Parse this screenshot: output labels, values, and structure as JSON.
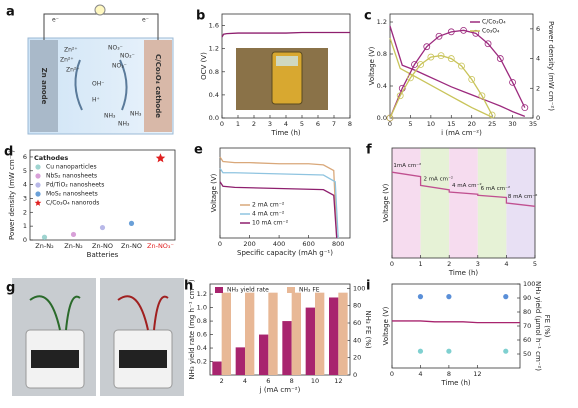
{
  "diagram": {
    "panel": "a",
    "labels": [
      "e⁻",
      "e⁻",
      "Zn anode",
      "C/Co₃O₄ cathode",
      "Zn²⁺",
      "Zn²⁺",
      "Zn²⁺",
      "NO₃⁻",
      "NO₂⁻",
      "NO₃⁻",
      "OH⁻",
      "H⁺",
      "NH₃",
      "NH₃",
      "NH₃"
    ]
  },
  "photo": {
    "panel": "g"
  },
  "chart_data": [
    {
      "panel": "b",
      "type": "line",
      "xlabel": "Time (h)",
      "ylabel": "OCV (V)",
      "xlim": [
        0,
        8
      ],
      "ylim": [
        0,
        1.8
      ],
      "xticks": [
        0,
        1,
        2,
        3,
        4,
        5,
        6,
        7,
        8
      ],
      "yticks": [
        {
          "value": 0,
          "label": "0.0"
        },
        0.4,
        0.8,
        1.2,
        1.6
      ],
      "series": [
        {
          "color": "#8e1f6e",
          "x": [
            0,
            0.1,
            0.3,
            1,
            2,
            3,
            4,
            5,
            6,
            7,
            8
          ],
          "values": [
            1.4,
            1.45,
            1.46,
            1.47,
            1.47,
            1.47,
            1.47,
            1.48,
            1.48,
            1.48,
            1.48
          ]
        }
      ]
    },
    {
      "panel": "c",
      "type": "line",
      "xlabel": "i (mA cm⁻²)",
      "ylabel": "Voltage (V)",
      "y2label": "Power density (mW cm⁻²)",
      "xlim": [
        0,
        35
      ],
      "ylim": [
        0,
        1.3
      ],
      "y2lim": [
        0,
        7
      ],
      "xticks": [
        0,
        5,
        10,
        15,
        20,
        25,
        30,
        35
      ],
      "yticks": [
        {
          "value": 0,
          "label": "0.0"
        },
        0.4,
        0.8,
        1.2
      ],
      "y2ticks": [
        0,
        2,
        4,
        6
      ],
      "series": [
        {
          "name": "C/Co₃O₄",
          "color": "#9c2a7e",
          "x": [
            0,
            3,
            6,
            9,
            12,
            15,
            18,
            21,
            24,
            27,
            30,
            33
          ],
          "values": [
            1.15,
            0.66,
            0.6,
            0.53,
            0.46,
            0.39,
            0.33,
            0.27,
            0.21,
            0.15,
            0.08,
            0.02
          ]
        },
        {
          "name": "Co₃O₄",
          "color": "#c9c45a",
          "x": [
            0,
            2.5,
            5,
            7.5,
            10,
            12.5,
            15,
            17.5,
            20,
            22.5,
            25
          ],
          "values": [
            1.0,
            0.62,
            0.55,
            0.48,
            0.41,
            0.34,
            0.27,
            0.2,
            0.13,
            0.07,
            0.01
          ]
        },
        {
          "color": "#9c2a7e",
          "axis": "y2",
          "marker": "circle",
          "x": [
            0,
            3,
            6,
            9,
            12,
            15,
            18,
            21,
            24,
            27,
            30,
            33
          ],
          "values": [
            0,
            2.0,
            3.6,
            4.8,
            5.5,
            5.8,
            5.9,
            5.7,
            5.0,
            4.0,
            2.4,
            0.7
          ]
        },
        {
          "color": "#c9c45a",
          "axis": "y2",
          "marker": "circle",
          "x": [
            0,
            2.5,
            5,
            7.5,
            10,
            12.5,
            15,
            17.5,
            20,
            22.5,
            25
          ],
          "values": [
            0,
            1.5,
            2.7,
            3.6,
            4.1,
            4.2,
            4.0,
            3.5,
            2.6,
            1.5,
            0.2
          ]
        }
      ]
    },
    {
      "panel": "d",
      "type": "scatter",
      "xlabel": "Batteries",
      "ylabel": "Power density (mW cm⁻²)",
      "legend_title": "Cathodes",
      "categories": [
        "Zn-N₂",
        "Zn-N₂",
        "Zn-NO",
        "Zn-NO",
        "Zn-NO₃⁻"
      ],
      "label_colors": [
        "#222",
        "#222",
        "#222",
        "#222",
        "#e02020"
      ],
      "ylim": [
        0,
        6.5
      ],
      "yticks": [
        0,
        1,
        2,
        3,
        4,
        5,
        6
      ],
      "series": [
        {
          "name": "Cu nanoparticles",
          "color": "#9fd4d0",
          "values": [
            0.2,
            null,
            null,
            null,
            null
          ]
        },
        {
          "name": "NbS₂ nanosheets",
          "color": "#d8a0d8",
          "values": [
            null,
            0.4,
            null,
            null,
            null
          ]
        },
        {
          "name": "Pd/TiO₂ nanosheets",
          "color": "#b8b8e8",
          "values": [
            null,
            null,
            0.9,
            null,
            null
          ]
        },
        {
          "name": "MoS₂ nanosheets",
          "color": "#6aa0d8",
          "values": [
            null,
            null,
            null,
            1.2,
            null
          ]
        },
        {
          "name": "C/Co₃O₄ nanorods",
          "color": "#e02020",
          "marker": "star",
          "values": [
            null,
            null,
            null,
            null,
            5.9
          ]
        }
      ]
    },
    {
      "panel": "e",
      "type": "line",
      "xlabel": "Specific capacity (mAh g⁻¹)",
      "ylabel": "Voltage (V)",
      "xlim": [
        0,
        880
      ],
      "ylim": [
        0,
        0.8
      ],
      "xticks": [
        0,
        200,
        400,
        600,
        800
      ],
      "series": [
        {
          "name": "2 mA cm⁻²",
          "color": "#d9a87a",
          "x": [
            0,
            20,
            100,
            200,
            400,
            600,
            700,
            770,
            790
          ],
          "values": [
            0.72,
            0.68,
            0.67,
            0.67,
            0.66,
            0.66,
            0.65,
            0.6,
            0
          ]
        },
        {
          "name": "4 mA cm⁻²",
          "color": "#8fc4e0",
          "x": [
            0,
            20,
            100,
            400,
            700,
            780,
            800
          ],
          "values": [
            0.62,
            0.58,
            0.58,
            0.57,
            0.56,
            0.5,
            0
          ]
        },
        {
          "name": "10 mA cm⁻²",
          "color": "#8e1f6e",
          "x": [
            0,
            20,
            100,
            400,
            700,
            770,
            790
          ],
          "values": [
            0.5,
            0.46,
            0.45,
            0.44,
            0.43,
            0.38,
            0
          ]
        }
      ]
    },
    {
      "panel": "f",
      "type": "line",
      "xlabel": "Time (h)",
      "ylabel": "Voltage (V)",
      "xlim": [
        0,
        5
      ],
      "ylim": [
        0,
        1.0
      ],
      "xticks": [
        0,
        1,
        2,
        3,
        4,
        5
      ],
      "band_colors": [
        "#f6dcef",
        "#e6f2d6",
        "#f6dcef",
        "#e6f2d6",
        "#e8e0f4"
      ],
      "annotations": [
        "1mA cm⁻²",
        "2 mA cm⁻²",
        "4 mA cm⁻²",
        "6 mA cm⁻²",
        "8 mA cm⁻²"
      ],
      "series": [
        {
          "color": "#c05090",
          "x": [
            0,
            1,
            1,
            2,
            2,
            3,
            3,
            4,
            4,
            5
          ],
          "values": [
            0.78,
            0.74,
            0.66,
            0.62,
            0.6,
            0.58,
            0.57,
            0.55,
            0.5,
            0.47
          ]
        }
      ]
    },
    {
      "panel": "h",
      "type": "bar",
      "xlabel": "j (mA cm⁻²)",
      "ylabel": "NH₃ yield rate (mg h⁻¹ cm⁻²)",
      "y2label": "NH₃ FE (%)",
      "categories": [
        "2",
        "4",
        "6",
        "8",
        "10",
        "12"
      ],
      "ylim": [
        0,
        1.35
      ],
      "y2lim": [
        0,
        105
      ],
      "yticks": [
        0.2,
        0.4,
        0.6,
        0.8,
        {
          "value": 1,
          "label": "1.0"
        },
        1.2
      ],
      "y2ticks": [
        0,
        20,
        40,
        60,
        80,
        100
      ],
      "series": [
        {
          "name": "NH₃ yield rate",
          "color": "#a8246e",
          "values": [
            0.2,
            0.41,
            0.6,
            0.8,
            1.0,
            1.15
          ]
        },
        {
          "name": "NH₃ FE",
          "color": "#e8b896",
          "axis": "y2",
          "values": [
            95,
            95,
            95,
            95,
            95,
            95
          ]
        }
      ]
    },
    {
      "panel": "i",
      "type": "line",
      "xlabel": "Time (h)",
      "ylabel": "Voltage (V)",
      "y2label": [
        "NH₃ yield (μmol h⁻¹ cm⁻²)",
        "FE (%)"
      ],
      "xlim": [
        0,
        18
      ],
      "ylim": [
        0,
        1
      ],
      "y2lim": [
        40,
        100
      ],
      "xticks": [
        0,
        4,
        8,
        12
      ],
      "y2ticks": [
        50,
        60,
        70,
        80,
        90,
        100
      ],
      "series": [
        {
          "color": "#a8246e",
          "x": [
            0,
            2,
            4,
            6,
            8,
            10,
            12,
            14,
            16,
            18
          ],
          "values": [
            0.56,
            0.56,
            0.56,
            0.55,
            0.55,
            0.55,
            0.54,
            0.54,
            0.54,
            0.54
          ]
        },
        {
          "color": "#5a8fd8",
          "type": "scatter",
          "axis": "y2",
          "x": [
            4,
            8,
            16
          ],
          "values": [
            91,
            91,
            91
          ]
        },
        {
          "color": "#7fd0d0",
          "type": "scatter",
          "axis": "y2",
          "x": [
            4,
            8,
            16
          ],
          "values": [
            52,
            52,
            52
          ]
        }
      ]
    }
  ]
}
